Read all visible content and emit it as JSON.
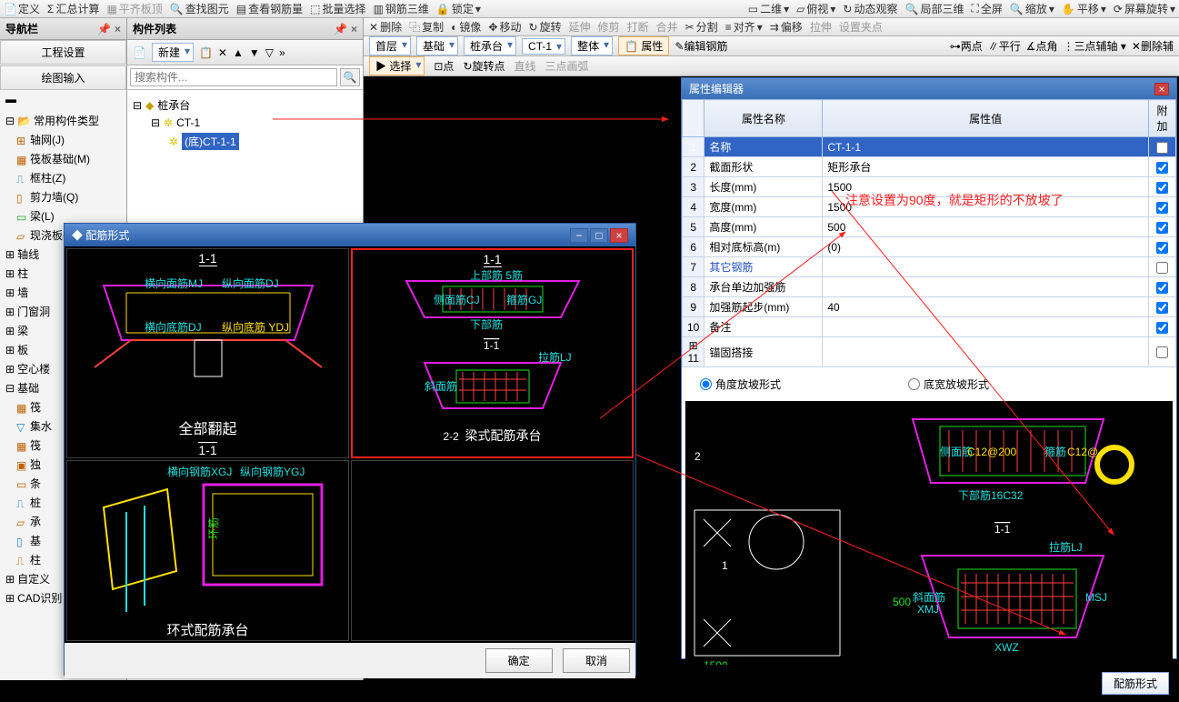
{
  "top_toolbar": {
    "items": [
      "定义",
      "汇总计算",
      "平齐板顶",
      "查找图元",
      "查看钢筋量",
      "批量选择",
      "钢筋三维",
      "锁定"
    ],
    "items2": [
      "二维",
      "俯视",
      "动态观察",
      "局部三维",
      "全屏",
      "缩放",
      "平移",
      "屏幕旋转"
    ]
  },
  "nav": {
    "title": "导航栏",
    "buttons": [
      "工程设置",
      "绘图输入"
    ],
    "group1_title": "常用构件类型",
    "group1": [
      "轴网(J)",
      "筏板基础(M)",
      "框柱(Z)",
      "剪力墙(Q)",
      "梁(L)",
      "现浇板(B)"
    ],
    "group2": [
      "轴线",
      "柱",
      "墙",
      "门窗洞",
      "梁",
      "板",
      "空心楼",
      "基础",
      "筏",
      "集水",
      "筏",
      "独",
      "条",
      "桩",
      "承",
      "基",
      "柱",
      "自定义",
      "CAD识别"
    ]
  },
  "comp": {
    "title": "构件列表",
    "new_btn": "新建",
    "search_placeholder": "搜索构件...",
    "root": "桩承台",
    "child1": "CT-1",
    "child2": "(底)CT-1-1"
  },
  "main_tb1": [
    "删除",
    "复制",
    "镜像",
    "移动",
    "旋转",
    "延伸",
    "修剪",
    "打断",
    "合并",
    "分割",
    "对齐",
    "偏移",
    "拉伸",
    "设置夹点"
  ],
  "main_combos": {
    "floor": "首层",
    "cat": "基础",
    "sub": "桩承台",
    "item": "CT-1",
    "mode": "整体",
    "prop_btn": "属性",
    "edit_btn": "编辑钢筋",
    "extra": [
      "两点",
      "平行",
      "点角",
      "三点辅轴",
      "删除辅"
    ]
  },
  "main_tb3": {
    "sel": "选择",
    "pt": "点",
    "rot": "旋转点",
    "line": "直线",
    "arc": "三点画弧"
  },
  "prop": {
    "title": "属性编辑器",
    "headers": [
      "属性名称",
      "属性值",
      "附加"
    ],
    "rows": [
      {
        "n": "1",
        "name": "名称",
        "val": "CT-1-1",
        "sel": true,
        "chk": false
      },
      {
        "n": "2",
        "name": "截面形状",
        "val": "矩形承台",
        "chk": true
      },
      {
        "n": "3",
        "name": "长度(mm)",
        "val": "1500",
        "chk": true
      },
      {
        "n": "4",
        "name": "宽度(mm)",
        "val": "1500",
        "chk": true
      },
      {
        "n": "5",
        "name": "高度(mm)",
        "val": "500",
        "chk": true
      },
      {
        "n": "6",
        "name": "相对底标高(m)",
        "val": "(0)",
        "chk": true
      },
      {
        "n": "7",
        "name": "其它钢筋",
        "val": "",
        "blue": true,
        "chk": false
      },
      {
        "n": "8",
        "name": "承台单边加强筋",
        "val": "",
        "chk": true
      },
      {
        "n": "9",
        "name": "加强筋起步(mm)",
        "val": "40",
        "chk": true
      },
      {
        "n": "10",
        "name": "备注",
        "val": "",
        "chk": true
      },
      {
        "n": "11",
        "name": "锚固搭接",
        "val": "",
        "expand": true,
        "chk": false
      }
    ],
    "radio1": "角度放坡形式",
    "radio2": "底宽放坡形式",
    "annotation": "注意设置为90度，就是矩形的不放坡了",
    "angle_label": "90",
    "diagram_labels": {
      "side": "侧面筋",
      "rebar1": "C12@200",
      "rebar2": "箍筋",
      "bottom": "下部筋16C32",
      "sec": "1-1",
      "pull": "拉筋LJ",
      "xie": "斜面筋",
      "xmj": "XMJ",
      "msj": "MSJ",
      "xwz": "XWZ",
      "dim": "1500",
      "h": "500"
    },
    "btn": "配筋形式"
  },
  "dialog": {
    "title": "配筋形式",
    "cells": [
      {
        "section": "1-1",
        "caption": "全部翻起",
        "sub": "1-1",
        "labels": [
          "横向面筋MJ",
          "纵向面筋DJ",
          "横向底筋DJ",
          "纵向底筋 YDJ"
        ]
      },
      {
        "section": "1-1",
        "caption": "梁式配筋承台",
        "sub": "2-2",
        "labels": [
          "上部筋 5筋",
          "侧面筋CJ",
          "箍筋GJ",
          "下部筋",
          "拉筋LJ",
          "斜面筋"
        ]
      },
      {
        "section": "",
        "caption": "环式配筋承台",
        "labels": [
          "横向钢筋XGJ",
          "纵向钢筋YGJ"
        ]
      },
      {
        "section": "",
        "caption": ""
      }
    ],
    "ok": "确定",
    "cancel": "取消"
  },
  "colors": {
    "red": "#ff2020",
    "yellow": "#ffe000",
    "green": "#20e020",
    "magenta": "#e020e0",
    "cyan": "#20e0e0",
    "white": "#ffffff",
    "blue": "#4080ff"
  }
}
